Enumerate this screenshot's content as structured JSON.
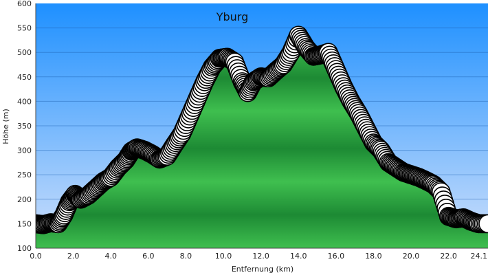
{
  "chart_data": {
    "type": "area",
    "title": "Yburg",
    "xlabel": "Entfernung   (km)",
    "ylabel": "Höhe (m)",
    "xlim": [
      0,
      24.1
    ],
    "ylim": [
      100,
      600
    ],
    "x_ticks": [
      "0.0",
      "2.0",
      "4.0",
      "6.0",
      "8.0",
      "10.0",
      "12.0",
      "14.0",
      "16.0",
      "18.0",
      "20.0",
      "22.0",
      "24.1"
    ],
    "y_ticks": [
      "100",
      "150",
      "200",
      "250",
      "300",
      "350",
      "400",
      "450",
      "500",
      "550",
      "600"
    ],
    "grid": true,
    "colors": {
      "sky_top": "#1e90ff",
      "sky_bottom": "#cfe0fb",
      "fill_light": "#3fbf4f",
      "fill_dark": "#1d8a34",
      "marker_fill": "#ffffff",
      "marker_stroke": "#000000"
    },
    "series": [
      {
        "name": "",
        "x": [
          0.0,
          0.4,
          0.8,
          1.2,
          1.5,
          1.8,
          2.1,
          2.4,
          2.8,
          3.2,
          3.6,
          4.0,
          4.4,
          4.8,
          5.1,
          5.4,
          5.8,
          6.2,
          6.6,
          7.0,
          7.4,
          7.8,
          8.2,
          8.6,
          9.0,
          9.4,
          9.8,
          10.2,
          10.6,
          11.0,
          11.3,
          11.6,
          12.0,
          12.4,
          12.8,
          13.2,
          13.6,
          14.0,
          14.4,
          14.8,
          15.2,
          15.6,
          16.0,
          16.4,
          16.8,
          17.2,
          17.6,
          18.0,
          18.4,
          18.8,
          19.2,
          19.6,
          20.0,
          20.4,
          20.8,
          21.2,
          21.6,
          22.0,
          22.4,
          22.8,
          23.2,
          23.6,
          24.1
        ],
        "y": [
          150,
          148,
          152,
          150,
          168,
          195,
          210,
          200,
          208,
          222,
          236,
          245,
          265,
          280,
          298,
          305,
          300,
          292,
          282,
          288,
          312,
          335,
          370,
          405,
          440,
          470,
          488,
          490,
          480,
          440,
          418,
          440,
          450,
          448,
          462,
          475,
          500,
          535,
          510,
          492,
          495,
          500,
          465,
          430,
          400,
          375,
          345,
          315,
          300,
          275,
          265,
          255,
          250,
          245,
          238,
          230,
          215,
          165,
          160,
          162,
          155,
          150,
          150
        ]
      }
    ]
  }
}
